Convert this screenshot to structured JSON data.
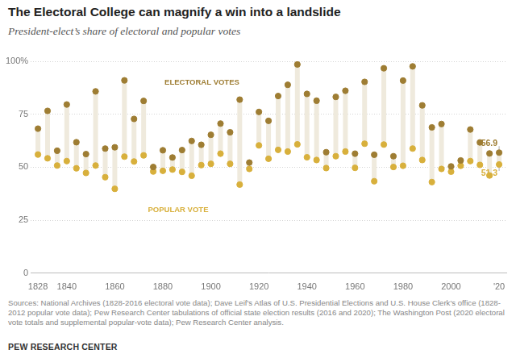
{
  "chart_data": {
    "type": "dumbbell",
    "title": "The Electoral College can magnify a win into a landslide",
    "subtitle": "President-elect’s share of electoral and popular votes",
    "source": "Sources: National Archives (1828-2016 electoral vote data); Dave Leif's Atlas of U.S. Presidential Elections and U.S. House Clerk's office (1828-2012 popular vote data); Pew Research Center tabulations of official state election results (2016 and 2020); The Washington Post (2020 electoral vote totals and supplemental popular-vote data); Pew Research Center analysis.",
    "credit": "PEW RESEARCH CENTER",
    "x": [
      1828,
      1832,
      1836,
      1840,
      1844,
      1848,
      1852,
      1856,
      1860,
      1864,
      1868,
      1872,
      1876,
      1880,
      1884,
      1888,
      1892,
      1896,
      1900,
      1904,
      1908,
      1912,
      1916,
      1920,
      1924,
      1928,
      1932,
      1936,
      1940,
      1944,
      1948,
      1952,
      1956,
      1960,
      1964,
      1968,
      1972,
      1976,
      1980,
      1984,
      1988,
      1992,
      1996,
      2000,
      2004,
      2008,
      2012,
      2016,
      2020
    ],
    "series": [
      {
        "name": "ELECTORAL VOTES",
        "color": "#9e7d33",
        "values": [
          68.2,
          76.6,
          57.8,
          79.6,
          61.8,
          56.2,
          85.8,
          58.8,
          59.4,
          91.0,
          72.8,
          81.3,
          50.1,
          58.0,
          54.6,
          58.1,
          62.4,
          60.6,
          65.3,
          70.6,
          66.5,
          81.9,
          52.2,
          76.1,
          71.9,
          83.6,
          88.9,
          98.5,
          84.6,
          81.4,
          57.1,
          83.2,
          86.1,
          56.4,
          90.3,
          55.9,
          96.7,
          55.2,
          90.9,
          97.6,
          79.2,
          68.8,
          70.4,
          50.4,
          53.2,
          67.8,
          61.7,
          56.5,
          56.9
        ]
      },
      {
        "name": "POPULAR VOTE",
        "color": "#d8b03c",
        "values": [
          56.0,
          54.2,
          50.8,
          52.9,
          49.5,
          47.3,
          50.8,
          45.3,
          39.8,
          55.0,
          52.7,
          55.6,
          48.0,
          48.3,
          48.9,
          47.8,
          46.0,
          51.0,
          51.6,
          56.4,
          51.6,
          41.8,
          49.2,
          60.3,
          54.0,
          58.2,
          57.4,
          60.8,
          54.7,
          53.4,
          49.6,
          55.2,
          57.4,
          49.7,
          61.1,
          43.4,
          60.7,
          50.1,
          50.7,
          58.8,
          53.4,
          43.0,
          49.2,
          47.9,
          50.7,
          52.9,
          51.1,
          46.1,
          51.3
        ]
      }
    ],
    "annotations": [
      {
        "series": "ELECTORAL VOTES",
        "x": 2020,
        "text": "56.9"
      },
      {
        "series": "POPULAR VOTE",
        "x": 2020,
        "text": "51.3"
      }
    ],
    "xlim": [
      1825,
      2023
    ],
    "xticks": [
      1828,
      1840,
      1860,
      1880,
      1900,
      1920,
      1940,
      1960,
      1980,
      2000,
      {
        "value": 2020,
        "label": "'20"
      }
    ],
    "ylim": [
      0,
      100
    ],
    "yticks": [
      0,
      25,
      50,
      75,
      {
        "value": 100,
        "label": "100%"
      }
    ],
    "grid": true
  }
}
